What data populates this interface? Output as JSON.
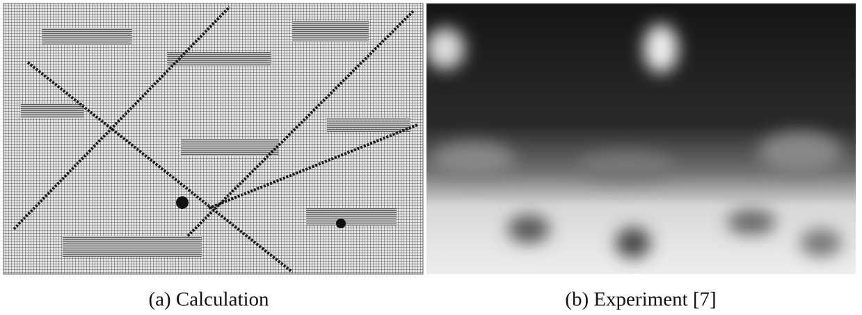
{
  "panels": [
    {
      "caption": "(a) Calculation"
    },
    {
      "caption": "(b) Experiment [7]"
    }
  ]
}
